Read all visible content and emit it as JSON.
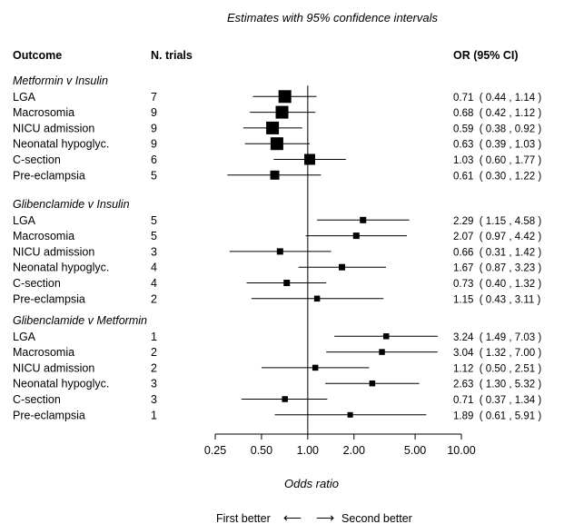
{
  "chart_data": {
    "type": "forest",
    "title": "Estimates with 95% confidence intervals",
    "xlabel": "Odds ratio",
    "x_scale": "log",
    "xlim": [
      0.25,
      10.0
    ],
    "x_ticks": [
      "0.25",
      "0.50",
      "1.00",
      "2.00",
      "5.00",
      "10.00"
    ],
    "x_tick_values": [
      0.25,
      0.5,
      1.0,
      2.0,
      5.0,
      10.0
    ],
    "reference_line": 1.0,
    "headers": {
      "outcome": "Outcome",
      "trials": "N. trials",
      "or": "OR (95% CI)"
    },
    "direction": {
      "left": "First better",
      "right": "Second better",
      "left_arrow": "⟵",
      "right_arrow": "⟶"
    },
    "groups": [
      {
        "name": "Metformin v Insulin",
        "rows": [
          {
            "outcome": "LGA",
            "trials": "7",
            "or": 0.71,
            "lo": 0.44,
            "hi": 1.14,
            "text": "0.71  ( 0.44 , 1.14 )",
            "weight": 1.0
          },
          {
            "outcome": "Macrosomia",
            "trials": "9",
            "or": 0.68,
            "lo": 0.42,
            "hi": 1.12,
            "text": "0.68  ( 0.42 , 1.12 )",
            "weight": 1.0
          },
          {
            "outcome": "NICU admission",
            "trials": "9",
            "or": 0.59,
            "lo": 0.38,
            "hi": 0.92,
            "text": "0.59  ( 0.38 , 0.92 )",
            "weight": 1.0
          },
          {
            "outcome": "Neonatal hypoglyc.",
            "trials": "9",
            "or": 0.63,
            "lo": 0.39,
            "hi": 1.03,
            "text": "0.63  ( 0.39 , 1.03 )",
            "weight": 1.0
          },
          {
            "outcome": "C-section",
            "trials": "6",
            "or": 1.03,
            "lo": 0.6,
            "hi": 1.77,
            "text": "1.03  ( 0.60 , 1.77 )",
            "weight": 0.8
          },
          {
            "outcome": "Pre-eclampsia",
            "trials": "5",
            "or": 0.61,
            "lo": 0.3,
            "hi": 1.22,
            "text": "0.61  ( 0.30 , 1.22 )",
            "weight": 0.6
          }
        ]
      },
      {
        "name": "Glibenclamide v Insulin",
        "rows": [
          {
            "outcome": "LGA",
            "trials": "5",
            "or": 2.29,
            "lo": 1.15,
            "hi": 4.58,
            "text": "2.29  ( 1.15 , 4.58 )",
            "weight": 0.3
          },
          {
            "outcome": "Macrosomia",
            "trials": "5",
            "or": 2.07,
            "lo": 0.97,
            "hi": 4.42,
            "text": "2.07  ( 0.97 , 4.42 )",
            "weight": 0.3
          },
          {
            "outcome": "NICU admission",
            "trials": "3",
            "or": 0.66,
            "lo": 0.31,
            "hi": 1.42,
            "text": "0.66  ( 0.31 , 1.42 )",
            "weight": 0.3
          },
          {
            "outcome": "Neonatal hypoglyc.",
            "trials": "4",
            "or": 1.67,
            "lo": 0.87,
            "hi": 3.23,
            "text": "1.67  ( 0.87 , 3.23 )",
            "weight": 0.3
          },
          {
            "outcome": "C-section",
            "trials": "4",
            "or": 0.73,
            "lo": 0.4,
            "hi": 1.32,
            "text": "0.73  ( 0.40 , 1.32 )",
            "weight": 0.3
          },
          {
            "outcome": "Pre-eclampsia",
            "trials": "2",
            "or": 1.15,
            "lo": 0.43,
            "hi": 3.11,
            "text": "1.15  ( 0.43 , 3.11 )",
            "weight": 0.25
          }
        ]
      },
      {
        "name": "Glibenclamide v Metformin",
        "rows": [
          {
            "outcome": "LGA",
            "trials": "1",
            "or": 3.24,
            "lo": 1.49,
            "hi": 7.03,
            "text": "3.24  ( 1.49 , 7.03 )",
            "weight": 0.25
          },
          {
            "outcome": "Macrosomia",
            "trials": "2",
            "or": 3.04,
            "lo": 1.32,
            "hi": 7.0,
            "text": "3.04  ( 1.32 , 7.00 )",
            "weight": 0.25
          },
          {
            "outcome": "NICU admission",
            "trials": "2",
            "or": 1.12,
            "lo": 0.5,
            "hi": 2.51,
            "text": "1.12  ( 0.50 , 2.51 )",
            "weight": 0.25
          },
          {
            "outcome": "Neonatal hypoglyc.",
            "trials": "3",
            "or": 2.63,
            "lo": 1.3,
            "hi": 5.32,
            "text": "2.63  ( 1.30 , 5.32 )",
            "weight": 0.25
          },
          {
            "outcome": "C-section",
            "trials": "3",
            "or": 0.71,
            "lo": 0.37,
            "hi": 1.34,
            "text": "0.71  ( 0.37 , 1.34 )",
            "weight": 0.25
          },
          {
            "outcome": "Pre-eclampsia",
            "trials": "1",
            "or": 1.89,
            "lo": 0.61,
            "hi": 5.91,
            "text": "1.89  ( 0.61 , 5.91 )",
            "weight": 0.2
          }
        ]
      }
    ]
  }
}
